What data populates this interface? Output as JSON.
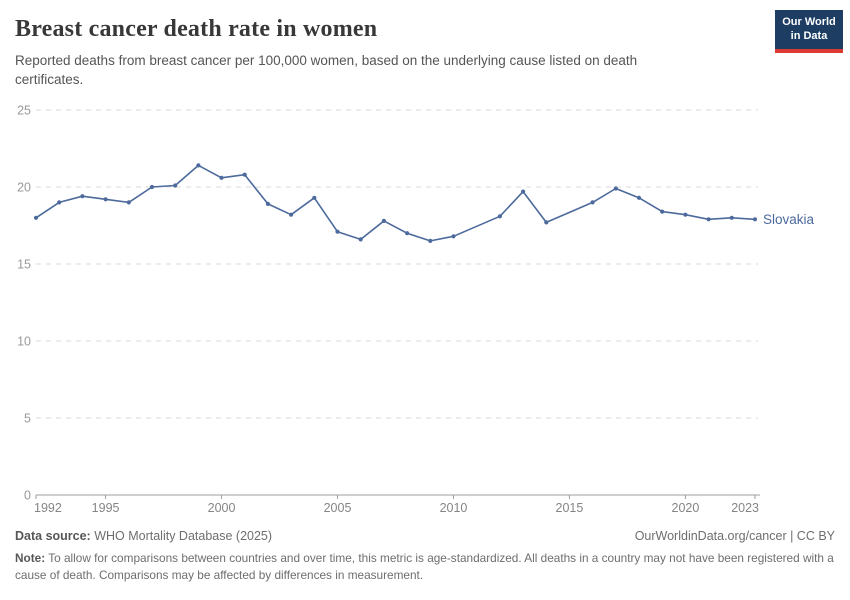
{
  "header": {
    "title": "Breast cancer death rate in women",
    "subtitle": "Reported deaths from breast cancer per 100,000 women, based on the underlying cause listed on death certificates."
  },
  "logo": {
    "line1": "Our World",
    "line2": "in Data"
  },
  "chart_data": {
    "type": "line",
    "title": "Breast cancer death rate in women",
    "entity_label": "Slovakia",
    "x": [
      1992,
      1993,
      1994,
      1995,
      1996,
      1997,
      1998,
      1999,
      2000,
      2001,
      2002,
      2003,
      2004,
      2005,
      2006,
      2007,
      2008,
      2009,
      2010,
      2011,
      2012,
      2013,
      2014,
      2015,
      2016,
      2017,
      2018,
      2019,
      2020,
      2021,
      2022,
      2023
    ],
    "series": [
      {
        "name": "Slovakia",
        "values": [
          18.0,
          19.0,
          19.4,
          19.2,
          19.0,
          20.0,
          20.1,
          21.4,
          20.6,
          20.8,
          18.9,
          18.2,
          19.3,
          17.1,
          16.6,
          17.8,
          17.0,
          16.5,
          16.8,
          null,
          18.1,
          19.7,
          17.7,
          null,
          19.0,
          19.9,
          19.3,
          18.4,
          18.2,
          17.9,
          18.0,
          17.9
        ]
      }
    ],
    "xlabel": "",
    "ylabel": "",
    "ylim": [
      0,
      25
    ],
    "yticks": [
      0,
      5,
      10,
      15,
      20,
      25
    ],
    "xticks": [
      1992,
      1995,
      2000,
      2005,
      2010,
      2015,
      2020,
      2023
    ],
    "grid": "dashed horizontal",
    "legend_position": "end-of-line label",
    "line_color": "#4c6a9c",
    "grid_color": "#d9d9d9",
    "axis_color": "#9e9e9e",
    "ytick_color": "#999999",
    "xtick_color": "#858585"
  },
  "footer": {
    "datasource_label": "Data source:",
    "datasource_value": " WHO Mortality Database (2025)",
    "attribution": "OurWorldinData.org/cancer | CC BY",
    "note_label": "Note:",
    "note_text": " To allow for comparisons between countries and over time, this metric is age-standardized. All deaths in a country may not have been registered with a cause of death. Comparisons may be affected by differences in measurement."
  }
}
